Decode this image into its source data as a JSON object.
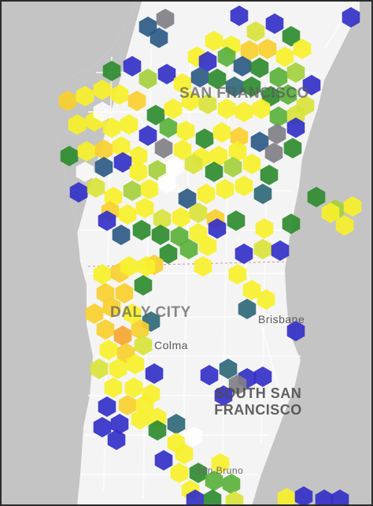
{
  "map": {
    "labels": {
      "san_francisco": "SAN FRANCISCO",
      "daly_city": "DALY CITY",
      "colma": "Colma",
      "brisbane": "Brisbane",
      "south_sf_line1": "SOUTH SAN",
      "south_sf_line2": "FRANCISCO",
      "san_bruno": "San Bruno"
    },
    "colors": {
      "water": "#c4c4c4",
      "land": "#f4f4f4",
      "road": "#ffffff",
      "county_line": "#d98f8f",
      "hex_blue": "#3330c8",
      "hex_navy": "#2c5a86",
      "hex_teal": "#2f6878",
      "hex_gray": "#7f7f86",
      "hex_darkgreen": "#2f8b2f",
      "hex_green": "#5ab13b",
      "hex_lightgreen": "#a4cf3c",
      "hex_yellowgreen": "#d8e33a",
      "hex_yellow": "#f6f02a",
      "hex_gold": "#f9cf2d",
      "hex_orange": "#f6a52f",
      "hex_white": "#ffffff"
    }
  }
}
